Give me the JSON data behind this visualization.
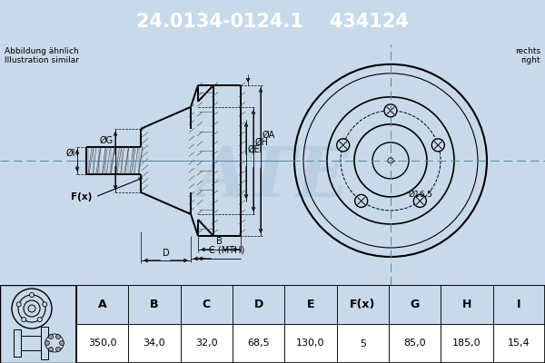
{
  "part_number": "24.0134-0124.1",
  "article_number": "434124",
  "header_bg": "#0050aa",
  "header_text_color": "#ffffff",
  "body_bg": "#c8daea",
  "note_text": "Abbildung ähnlich\nIllustration similar",
  "side_text": "rechts\nright",
  "bolt_label": "Ø16,5",
  "table_headers": [
    "A",
    "B",
    "C",
    "D",
    "E",
    "F(x)",
    "G",
    "H",
    "I"
  ],
  "table_values": [
    "350,0",
    "34,0",
    "32,0",
    "68,5",
    "130,0",
    "5",
    "85,0",
    "185,0",
    "15,4"
  ],
  "table_bg_header": "#c8daea",
  "table_bg_value": "#ffffff",
  "diagram_bg": "#c8daea",
  "line_color": "#000000",
  "crosshair_color": "#5588aa",
  "watermark_color": "#b0c8dc",
  "hatch_color": "#444444"
}
